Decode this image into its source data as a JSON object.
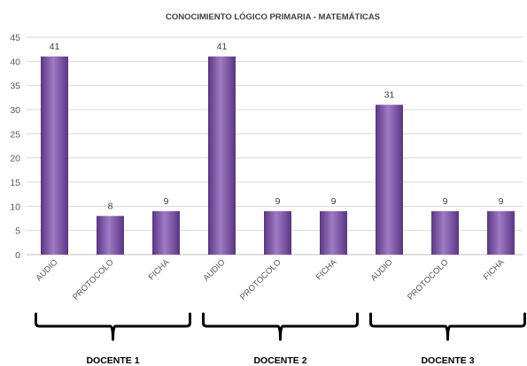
{
  "chart_data": {
    "type": "bar",
    "title": "CONOCIMIENTO LÓGICO PRIMARIA - MATEMÁTICAS",
    "categories": [
      "AUDIO",
      "PROTOCOLO",
      "FICHA",
      "AUDIO",
      "PROTOCOLO",
      "FICHA",
      "AUDIO",
      "PROTOCOLO",
      "FICHA"
    ],
    "values": [
      41,
      8,
      9,
      41,
      9,
      9,
      31,
      9,
      9
    ],
    "groups": [
      {
        "label": "DOCENTE 1",
        "start": 0,
        "end": 2
      },
      {
        "label": "DOCENTE 2",
        "start": 3,
        "end": 5
      },
      {
        "label": "DOCENTE 3",
        "start": 6,
        "end": 8
      }
    ],
    "ylim": [
      0,
      45
    ],
    "yticks": [
      0,
      5,
      10,
      15,
      20,
      25,
      30,
      35,
      40,
      45
    ],
    "grid": true,
    "data_labels": true,
    "xlabel": "",
    "ylabel": "",
    "bar_color": "#7b4fa6",
    "bar_color_light": "#9f7bc4",
    "bar_color_dark": "#5b3584"
  }
}
